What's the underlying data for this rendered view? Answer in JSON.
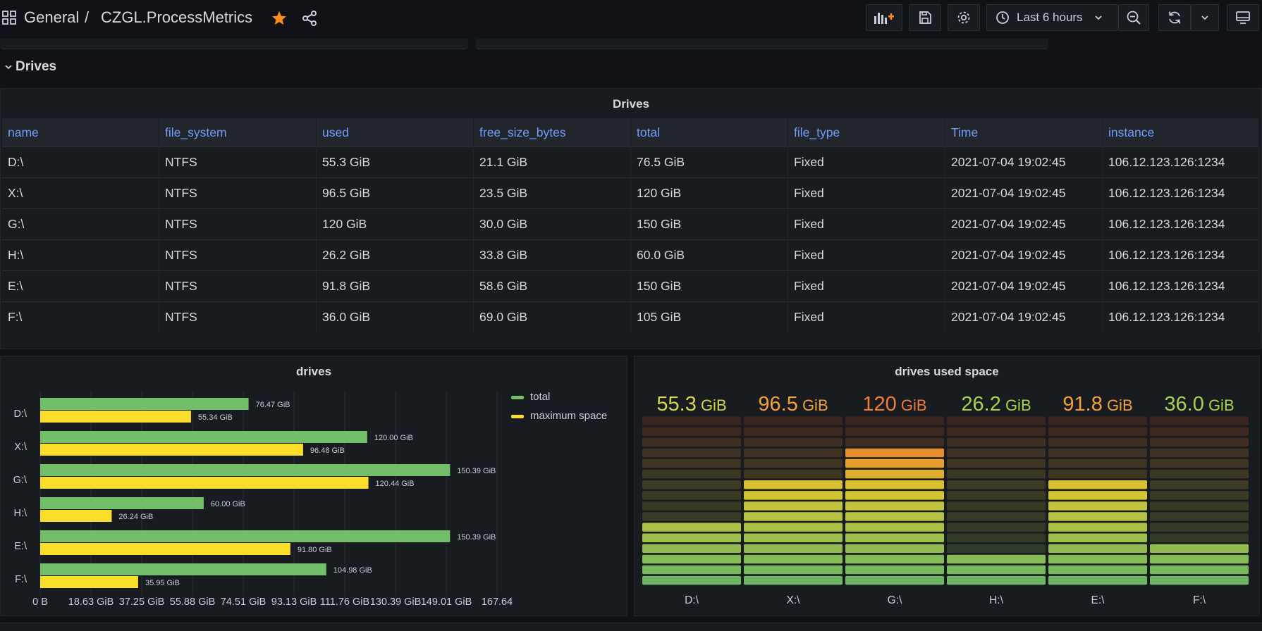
{
  "breadcrumb": {
    "folder": "General",
    "separator": "/",
    "dashboard": "CZGL.ProcessMetrics"
  },
  "toolbar": {
    "time_range": "Last 6 hours"
  },
  "row": {
    "title": "Drives"
  },
  "table_panel": {
    "title": "Drives",
    "columns": [
      "name",
      "file_system",
      "used",
      "free_size_bytes",
      "total",
      "file_type",
      "Time",
      "instance"
    ],
    "rows": [
      [
        "D:\\",
        "NTFS",
        "55.3 GiB",
        "21.1 GiB",
        "76.5 GiB",
        "Fixed",
        "2021-07-04 19:02:45",
        "106.12.123.126:1234"
      ],
      [
        "X:\\",
        "NTFS",
        "96.5 GiB",
        "23.5 GiB",
        "120 GiB",
        "Fixed",
        "2021-07-04 19:02:45",
        "106.12.123.126:1234"
      ],
      [
        "G:\\",
        "NTFS",
        "120 GiB",
        "30.0 GiB",
        "150 GiB",
        "Fixed",
        "2021-07-04 19:02:45",
        "106.12.123.126:1234"
      ],
      [
        "H:\\",
        "NTFS",
        "26.2 GiB",
        "33.8 GiB",
        "60.0 GiB",
        "Fixed",
        "2021-07-04 19:02:45",
        "106.12.123.126:1234"
      ],
      [
        "E:\\",
        "NTFS",
        "91.8 GiB",
        "58.6 GiB",
        "150 GiB",
        "Fixed",
        "2021-07-04 19:02:45",
        "106.12.123.126:1234"
      ],
      [
        "F:\\",
        "NTFS",
        "36.0 GiB",
        "69.0 GiB",
        "105 GiB",
        "Fixed",
        "2021-07-04 19:02:45",
        "106.12.123.126:1234"
      ]
    ]
  },
  "chart_data": [
    {
      "type": "bar",
      "orientation": "horizontal",
      "title": "drives",
      "categories": [
        "D:\\",
        "X:\\",
        "G:\\",
        "H:\\",
        "E:\\",
        "F:\\"
      ],
      "series": [
        {
          "name": "total",
          "color": "#73bf69",
          "values": [
            76.47,
            120.0,
            150.39,
            60.0,
            150.39,
            104.98
          ],
          "labels": [
            "76.47 GiB",
            "120.00 GiB",
            "150.39 GiB",
            "60.00 GiB",
            "150.39 GiB",
            "104.98 GiB"
          ]
        },
        {
          "name": "maximum space",
          "color": "#fade2a",
          "values": [
            55.34,
            96.48,
            120.44,
            26.24,
            91.8,
            35.95
          ],
          "labels": [
            "55.34 GiB",
            "96.48 GiB",
            "120.44 GiB",
            "26.24 GiB",
            "91.80 GiB",
            "35.95 GiB"
          ]
        }
      ],
      "xticks": [
        "0 B",
        "18.63 GiB",
        "37.25 GiB",
        "55.88 GiB",
        "74.51 GiB",
        "93.13 GiB",
        "111.76 GiB",
        "130.39 GiB",
        "149.01 GiB",
        "167.64"
      ],
      "xlim": [
        0,
        167.64
      ],
      "legend": "top-right",
      "grid": true
    },
    {
      "type": "bar",
      "subtype": "bar-gauge-retro-lcd",
      "title": "drives used space",
      "categories": [
        "D:\\",
        "X:\\",
        "G:\\",
        "H:\\",
        "E:\\",
        "F:\\"
      ],
      "values": [
        55.3,
        96.5,
        120,
        26.2,
        91.8,
        36.0
      ],
      "value_labels": [
        "55.3",
        "96.5",
        "120",
        "26.2",
        "91.8",
        "36.0"
      ],
      "unit": "GiB",
      "max": 150,
      "value_colors": [
        "#d6d54a",
        "#f2a13a",
        "#f27b36",
        "#a8d14c",
        "#f2a13a",
        "#a8d14c"
      ]
    }
  ]
}
